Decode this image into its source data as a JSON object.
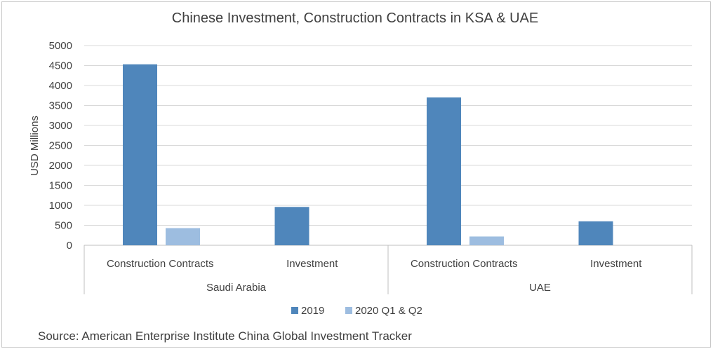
{
  "chart_data": {
    "type": "bar",
    "title": "Chinese Investment, Construction Contracts in KSA & UAE",
    "ylabel": "USD Millions",
    "xlabel": "",
    "ylim": [
      0,
      5000
    ],
    "yticks": [
      0,
      500,
      1000,
      1500,
      2000,
      2500,
      3000,
      3500,
      4000,
      4500,
      5000
    ],
    "ytick_labels": [
      "0",
      "500",
      "1000",
      "1500",
      "2000",
      "2500",
      "3000",
      "3500",
      "4000",
      "4500",
      "5000"
    ],
    "grid": true,
    "legend_position": "bottom",
    "groups": [
      {
        "label": "Saudi Arabia",
        "categories": [
          "Construction Contracts",
          "Investment"
        ]
      },
      {
        "label": "UAE",
        "categories": [
          "Construction Contracts",
          "Investment"
        ]
      }
    ],
    "categories": [
      "Construction Contracts",
      "Investment",
      "Construction Contracts",
      "Investment"
    ],
    "series": [
      {
        "name": "2019",
        "color": "#4f86bb",
        "values": [
          4530,
          960,
          3700,
          600
        ]
      },
      {
        "name": "2020 Q1 & Q2",
        "color": "#9dbde0",
        "values": [
          430,
          0,
          220,
          0
        ]
      }
    ]
  },
  "source_text": "Source: American Enterprise Institute China Global Investment Tracker"
}
